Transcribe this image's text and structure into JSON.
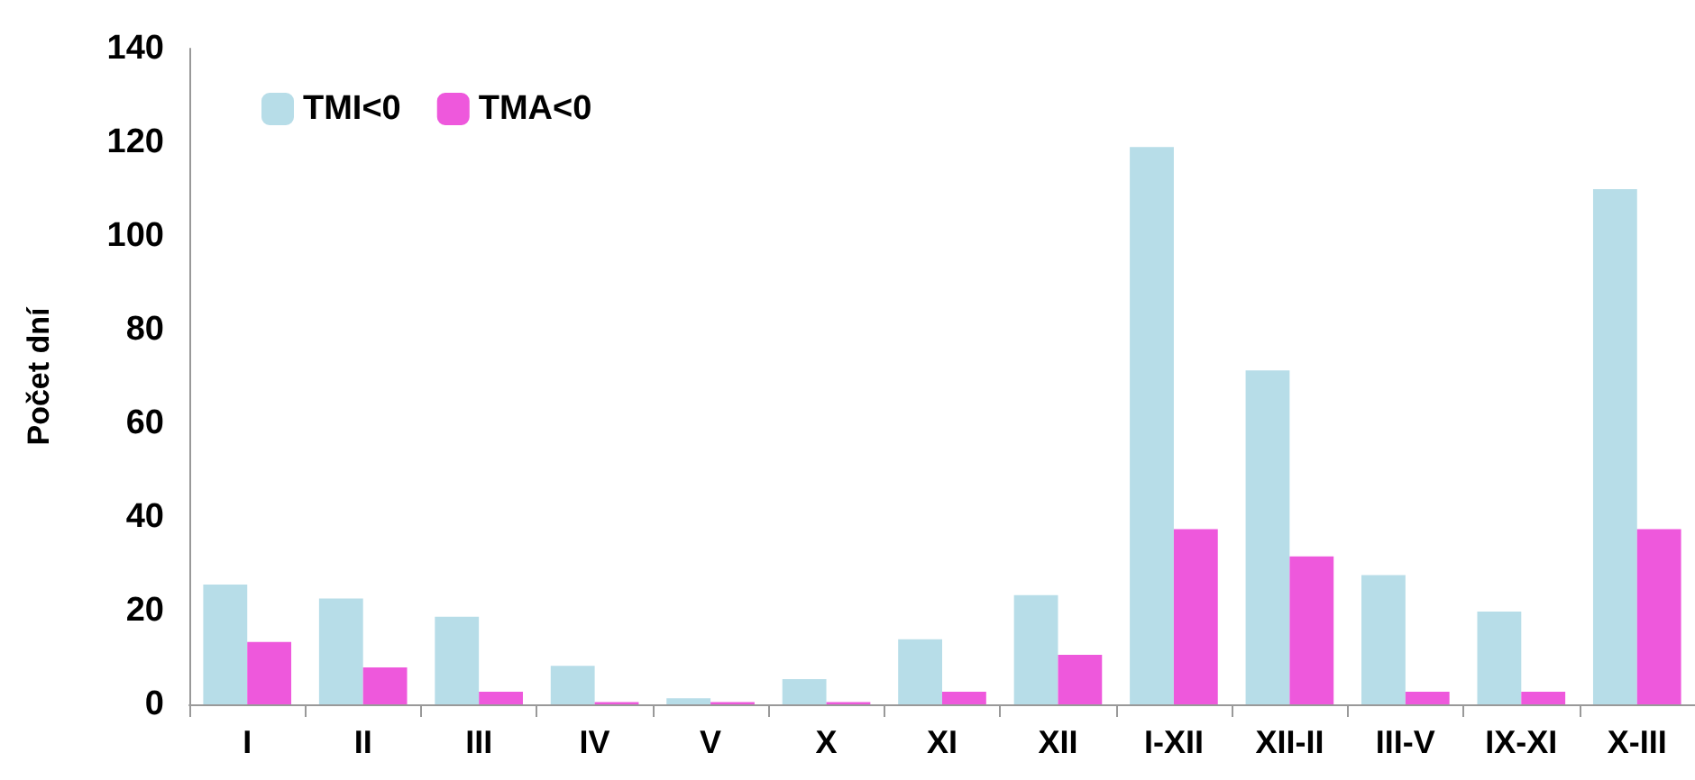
{
  "chart_data": {
    "type": "bar",
    "ylabel": "Počet dní",
    "categories": [
      "I",
      "II",
      "III",
      "IV",
      "V",
      "X",
      "XI",
      "XII",
      "I-XII",
      "XII-II",
      "III-V",
      "IX-XI",
      "X-III"
    ],
    "series": [
      {
        "name": "TMI<0",
        "color": "#b7dde8",
        "values": [
          25.6,
          22.6,
          18.7,
          8.2,
          1.3,
          5.4,
          13.9,
          23.3,
          119,
          71.3,
          27.6,
          19.8,
          110
        ]
      },
      {
        "name": "TMA<0",
        "color": "#ee58dc",
        "values": [
          13.3,
          7.9,
          2.7,
          0.5,
          0.5,
          0.5,
          2.7,
          10.6,
          37.4,
          31.6,
          2.7,
          2.7,
          37.4
        ]
      }
    ],
    "ylim": [
      0,
      140
    ],
    "yticks": [
      0,
      20,
      40,
      60,
      80,
      100,
      120,
      140
    ],
    "grid": false,
    "legend": "top left"
  }
}
